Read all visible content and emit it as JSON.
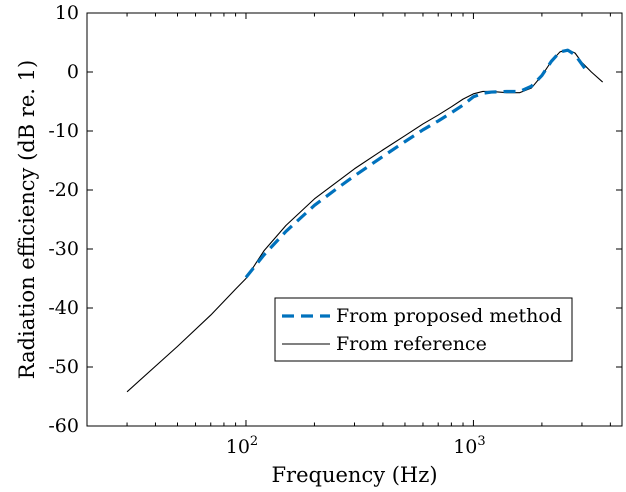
{
  "chart_data": {
    "type": "line",
    "xlabel": "Frequency (Hz)",
    "ylabel": "Radiation efficiency (dB re. 1)",
    "xscale": "log",
    "xlim": [
      20,
      4500
    ],
    "ylim": [
      -60,
      10
    ],
    "yticks": [
      10,
      0,
      -10,
      -20,
      -30,
      -40,
      -50,
      -60
    ],
    "xticks": [
      {
        "value": 100,
        "label_base": "10",
        "label_exp": "2"
      },
      {
        "value": 1000,
        "label_base": "10",
        "label_exp": "3"
      }
    ],
    "grid": false,
    "legend_position": "lower-right",
    "series": [
      {
        "name": "From proposed method",
        "style": "dashed",
        "color": "#0072BD",
        "points": [
          [
            100,
            -34.8
          ],
          [
            120,
            -31.0
          ],
          [
            150,
            -27.0
          ],
          [
            200,
            -22.6
          ],
          [
            250,
            -19.8
          ],
          [
            300,
            -17.6
          ],
          [
            400,
            -14.3
          ],
          [
            500,
            -11.8
          ],
          [
            600,
            -9.8
          ],
          [
            700,
            -8.3
          ],
          [
            800,
            -6.9
          ],
          [
            900,
            -5.6
          ],
          [
            1000,
            -4.2
          ],
          [
            1100,
            -3.6
          ],
          [
            1200,
            -3.4
          ],
          [
            1400,
            -3.3
          ],
          [
            1600,
            -3.3
          ],
          [
            1800,
            -2.4
          ],
          [
            2000,
            -0.6
          ],
          [
            2200,
            1.8
          ],
          [
            2400,
            3.4
          ],
          [
            2600,
            3.7
          ],
          [
            2800,
            2.9
          ],
          [
            3000,
            1.3
          ],
          [
            3200,
            -0.2
          ]
        ]
      },
      {
        "name": "From reference",
        "style": "solid",
        "color": "#000000",
        "points": [
          [
            30,
            -54.2
          ],
          [
            50,
            -46.5
          ],
          [
            70,
            -41.2
          ],
          [
            90,
            -36.8
          ],
          [
            100,
            -35.0
          ],
          [
            120,
            -30.3
          ],
          [
            150,
            -26.0
          ],
          [
            200,
            -21.5
          ],
          [
            250,
            -18.7
          ],
          [
            300,
            -16.4
          ],
          [
            400,
            -13.2
          ],
          [
            500,
            -10.8
          ],
          [
            600,
            -8.8
          ],
          [
            700,
            -7.3
          ],
          [
            800,
            -5.9
          ],
          [
            900,
            -4.6
          ],
          [
            1000,
            -3.7
          ],
          [
            1100,
            -3.3
          ],
          [
            1200,
            -3.3
          ],
          [
            1400,
            -3.5
          ],
          [
            1600,
            -3.5
          ],
          [
            1800,
            -2.7
          ],
          [
            2000,
            -0.6
          ],
          [
            2200,
            1.8
          ],
          [
            2400,
            3.4
          ],
          [
            2600,
            3.8
          ],
          [
            2800,
            3.2
          ],
          [
            3000,
            1.6
          ],
          [
            3300,
            0.0
          ],
          [
            3700,
            -1.7
          ]
        ]
      }
    ]
  }
}
